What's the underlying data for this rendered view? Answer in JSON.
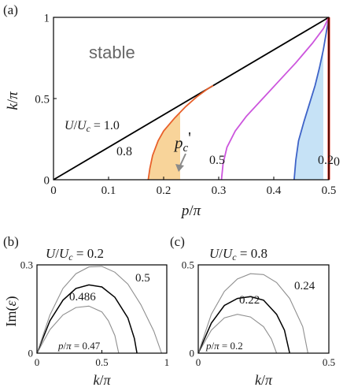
{
  "panels": {
    "a": {
      "label": "(a)"
    },
    "b": {
      "label": "(b)",
      "header": "U/Uc=0.2"
    },
    "c": {
      "label": "(c)",
      "header": "U/Uc=0.8"
    }
  },
  "annotations": {
    "stable": "stable",
    "pc_prime": "p_c'"
  },
  "colors": {
    "line_1_0": "#000000",
    "line_0_8": "#e8602a",
    "line_0_5": "#cc55dd",
    "line_0_2": "#3e63c8",
    "line_0": "#e02010",
    "fill_0_8": "#f8d49a",
    "fill_0_2": "#c6e2f6",
    "arrow": "#8a8a8a",
    "gray_curve": "#8f8f8f"
  },
  "chart_data": [
    {
      "id": "a",
      "type": "line",
      "xlabel": "p/π",
      "ylabel": "k/π",
      "xlim": [
        0,
        0.5
      ],
      "ylim": [
        0,
        1
      ],
      "xticks": [
        "0",
        "0.1",
        "0.2",
        "0.3",
        "0.4",
        "0.5"
      ],
      "yticks": [
        "0",
        "0.5",
        "1"
      ],
      "series": [
        {
          "name": "U/Uc=1.0",
          "label_text": "U/Uc=1.0",
          "x": [
            0,
            0.5
          ],
          "y": [
            0,
            1
          ]
        },
        {
          "name": "0.8",
          "label_text": "0.8",
          "x": [
            0.172,
            0.175,
            0.18,
            0.19,
            0.2,
            0.22,
            0.24,
            0.26,
            0.28,
            0.29
          ],
          "y": [
            0.0,
            0.07,
            0.15,
            0.24,
            0.3,
            0.38,
            0.45,
            0.51,
            0.56,
            0.58
          ]
        },
        {
          "name": "0.5",
          "label_text": "0.5",
          "x": [
            0.305,
            0.308,
            0.315,
            0.33,
            0.35,
            0.38,
            0.41,
            0.44,
            0.47,
            0.49,
            0.5
          ],
          "y": [
            0.0,
            0.1,
            0.2,
            0.3,
            0.39,
            0.5,
            0.61,
            0.72,
            0.84,
            0.93,
            1.0
          ]
        },
        {
          "name": "0.2",
          "label_text": "0.2",
          "x": [
            0.437,
            0.44,
            0.445,
            0.455,
            0.465,
            0.475,
            0.483,
            0.49,
            0.495,
            0.5
          ],
          "y": [
            0.0,
            0.12,
            0.24,
            0.36,
            0.47,
            0.58,
            0.69,
            0.8,
            0.9,
            1.0
          ]
        },
        {
          "name": "0",
          "label_text": "0",
          "x": [
            0.5,
            0.5
          ],
          "y": [
            0,
            1
          ]
        }
      ],
      "shaded": [
        {
          "series": "0.8",
          "x_range": [
            0.172,
            0.23
          ]
        },
        {
          "series": "0.2",
          "x_range": [
            0.437,
            0.49
          ]
        }
      ]
    },
    {
      "id": "b",
      "type": "line",
      "xlabel": "k/π",
      "ylabel": "Im(ε)",
      "xlim": [
        0,
        1
      ],
      "ylim": [
        0,
        0.3
      ],
      "xticks": [
        "0",
        "0.5",
        "1"
      ],
      "yticks": [
        "0",
        "0.3"
      ],
      "series": [
        {
          "name": "0.47",
          "label_text": "p/π=0.47",
          "x": [
            0,
            0.1,
            0.2,
            0.3,
            0.4,
            0.5,
            0.55,
            0.6,
            0.63
          ],
          "y": [
            0,
            0.08,
            0.13,
            0.155,
            0.16,
            0.14,
            0.11,
            0.06,
            0
          ]
        },
        {
          "name": "0.486",
          "label_text": "0.486",
          "x": [
            0,
            0.1,
            0.2,
            0.3,
            0.4,
            0.5,
            0.6,
            0.7,
            0.75,
            0.77
          ],
          "y": [
            0,
            0.11,
            0.18,
            0.22,
            0.232,
            0.225,
            0.19,
            0.12,
            0.05,
            0
          ]
        },
        {
          "name": "0.5",
          "label_text": "0.5",
          "x": [
            0,
            0.1,
            0.2,
            0.3,
            0.4,
            0.5,
            0.6,
            0.7,
            0.8,
            0.9,
            0.96
          ],
          "y": [
            0,
            0.13,
            0.22,
            0.27,
            0.293,
            0.295,
            0.275,
            0.235,
            0.165,
            0.075,
            0
          ]
        }
      ]
    },
    {
      "id": "c",
      "type": "line",
      "xlabel": "k/π",
      "ylabel": "",
      "xlim": [
        0,
        0.5
      ],
      "ylim": [
        0,
        0.5
      ],
      "xticks": [
        "0",
        "0.5"
      ],
      "yticks": [
        "0",
        "0.5"
      ],
      "series": [
        {
          "name": "0.2",
          "label_text": "p/π=0.2",
          "x": [
            0,
            0.05,
            0.1,
            0.15,
            0.2,
            0.25,
            0.28,
            0.3
          ],
          "y": [
            0,
            0.13,
            0.2,
            0.22,
            0.205,
            0.15,
            0.08,
            0
          ]
        },
        {
          "name": "0.22",
          "label_text": "0.22",
          "x": [
            0,
            0.05,
            0.1,
            0.15,
            0.2,
            0.25,
            0.3,
            0.33,
            0.35
          ],
          "y": [
            0,
            0.17,
            0.27,
            0.31,
            0.32,
            0.3,
            0.22,
            0.13,
            0
          ]
        },
        {
          "name": "0.24",
          "label_text": "0.24",
          "x": [
            0,
            0.05,
            0.1,
            0.15,
            0.2,
            0.25,
            0.3,
            0.35,
            0.4,
            0.42
          ],
          "y": [
            0,
            0.22,
            0.35,
            0.42,
            0.45,
            0.445,
            0.4,
            0.31,
            0.15,
            0
          ]
        }
      ]
    }
  ]
}
